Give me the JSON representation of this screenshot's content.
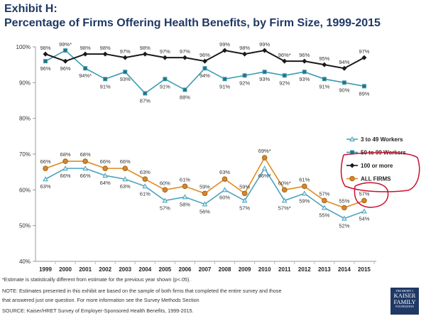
{
  "header": {
    "exhibit": "Exhibit H:",
    "title": "Percentage of Firms Offering Health Benefits, by Firm Size, 1999-2015"
  },
  "chart_data": {
    "type": "line",
    "title": "Percentage of Firms Offering Health Benefits, by Firm Size, 1999-2015",
    "x": [
      "1999",
      "2000",
      "2001",
      "2002",
      "2003",
      "2004",
      "2005",
      "2006",
      "2007",
      "2008",
      "2009",
      "2010",
      "2011",
      "2012",
      "2013",
      "2014",
      "2015"
    ],
    "ylim": [
      40,
      100
    ],
    "yticks": [
      "40%",
      "50%",
      "60%",
      "70%",
      "80%",
      "90%",
      "100%"
    ],
    "ytick_values": [
      40,
      50,
      60,
      70,
      80,
      90,
      100
    ],
    "grid": false,
    "legend_position": "right",
    "series": [
      {
        "name": "3 to 49 Workers",
        "color": "#4aa3bd",
        "marker": "triangle",
        "values": [
          63,
          66,
          66,
          64,
          63,
          61,
          57,
          58,
          56,
          60,
          57,
          66,
          57,
          59,
          55,
          52,
          54
        ],
        "significant": [
          false,
          false,
          false,
          false,
          false,
          false,
          false,
          false,
          false,
          false,
          false,
          true,
          true,
          false,
          false,
          false,
          false
        ]
      },
      {
        "name": "50 to 99 Workers",
        "color": "#3a9bb0",
        "marker": "square",
        "values": [
          96,
          99,
          94,
          91,
          93,
          87,
          91,
          88,
          94,
          91,
          92,
          93,
          92,
          93,
          91,
          90,
          89
        ],
        "significant": [
          false,
          true,
          true,
          false,
          false,
          false,
          false,
          false,
          false,
          false,
          false,
          false,
          false,
          false,
          false,
          false,
          false
        ]
      },
      {
        "name": "100 or more",
        "color": "#1a1a1a",
        "marker": "diamond",
        "values": [
          98,
          96,
          98,
          98,
          97,
          98,
          97,
          97,
          96,
          99,
          98,
          99,
          96,
          96,
          95,
          94,
          97
        ],
        "significant": [
          false,
          false,
          false,
          false,
          false,
          false,
          false,
          false,
          false,
          false,
          false,
          false,
          true,
          false,
          false,
          false,
          false
        ]
      },
      {
        "name": "ALL FIRMS",
        "color": "#e08a1e",
        "marker": "circle",
        "values": [
          66,
          68,
          68,
          66,
          66,
          63,
          60,
          61,
          59,
          63,
          59,
          69,
          60,
          61,
          57,
          55,
          57
        ],
        "significant": [
          false,
          false,
          false,
          false,
          false,
          false,
          false,
          false,
          false,
          false,
          false,
          true,
          true,
          false,
          false,
          false,
          false
        ]
      }
    ],
    "annotation_color": "#c8102e"
  },
  "footer": {
    "asterisk_note": "*Estimate is statistically different from estimate for the previous year shown (p<.05).",
    "note_line1": "NOTE: Estimates presented in this exhibit are based on the sample of both firms that completed the entire survey and those",
    "note_line2": "that answered just one question. For more information see the Survey Methods Section",
    "source": "SOURCE:  Kaiser/HRET Survey of Employer-Sponsored Health Benefits, 1999-2015.",
    "logo": "THE HENRY J. KAISER FAMILY FOUNDATION"
  }
}
